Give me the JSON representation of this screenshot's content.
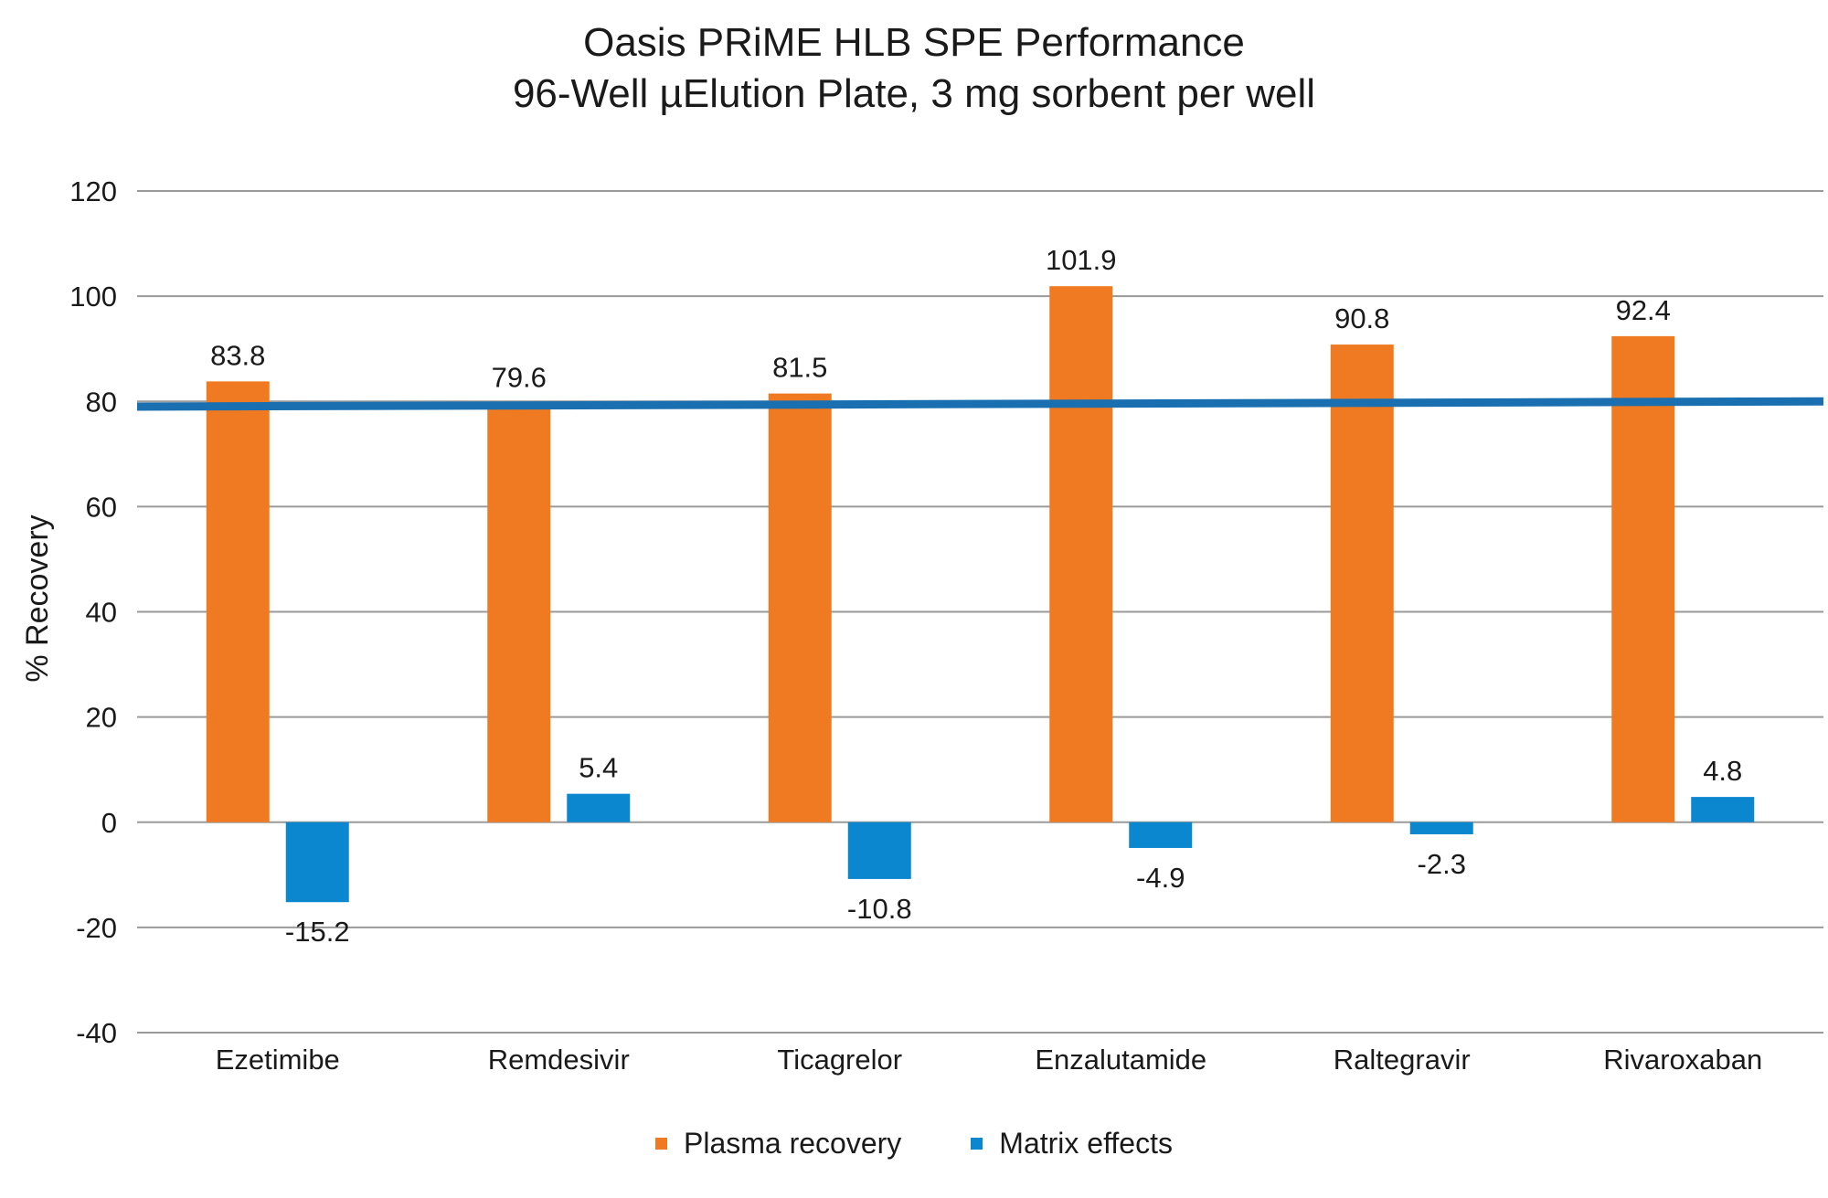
{
  "chart_data": {
    "type": "bar",
    "title": "Oasis PRiME HLB SPE Performance",
    "subtitle": "96-Well µElution Plate, 3 mg sorbent per well",
    "ylabel": "% Recovery",
    "xlabel": "",
    "ylim": [
      -40,
      120
    ],
    "yticks": [
      "120",
      "100",
      "80",
      "60",
      "40",
      "20",
      "0",
      "-20",
      "-40"
    ],
    "ytick_values": [
      120,
      100,
      80,
      60,
      40,
      20,
      0,
      -20,
      -40
    ],
    "categories": [
      "Ezetimibe",
      "Remdesivir",
      "Ticagrelor",
      "Enzalutamide",
      "Raltegravir",
      "Rivaroxaban"
    ],
    "series": [
      {
        "name": "Plasma recovery",
        "color": "#f07a22",
        "values": [
          83.8,
          79.6,
          81.5,
          101.9,
          90.8,
          92.4
        ],
        "labels": [
          "83.8",
          "79.6",
          "81.5",
          "101.9",
          "90.8",
          "92.4"
        ]
      },
      {
        "name": "Matrix effects",
        "color": "#0b87d0",
        "values": [
          -15.2,
          5.4,
          -10.8,
          -4.9,
          -2.3,
          4.8
        ],
        "labels": [
          "-15.2",
          "5.4",
          "-10.8",
          "-4.9",
          "-2.3",
          "4.8"
        ]
      }
    ],
    "reference_line": {
      "y_start": 79,
      "y_end": 80,
      "color": "#1a6fb0"
    },
    "grid": true,
    "legend_position": "bottom"
  }
}
